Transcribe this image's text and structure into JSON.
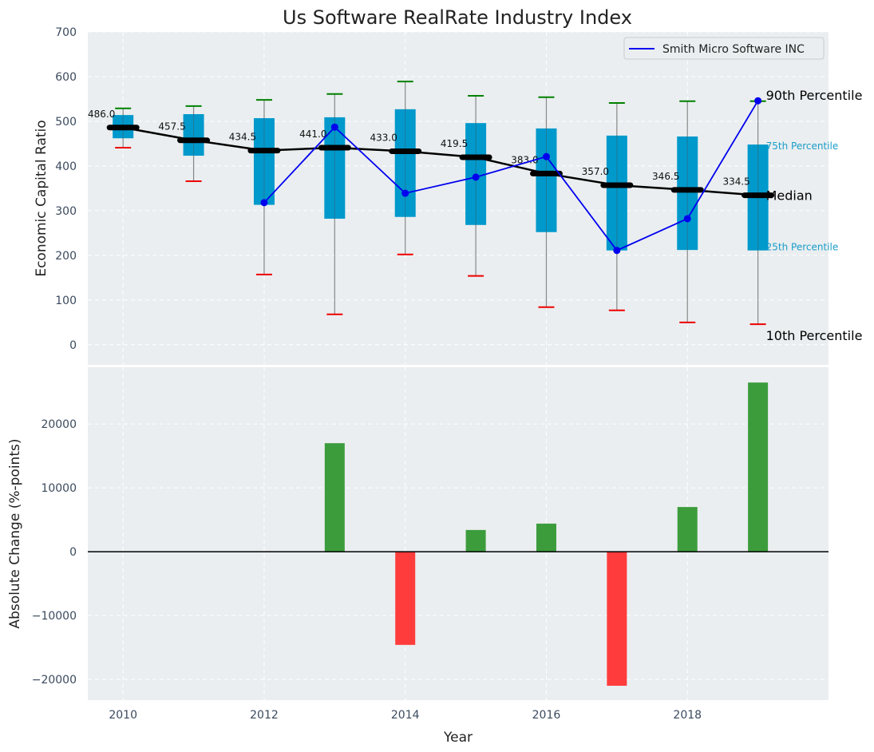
{
  "chart_data": [
    {
      "type": "box",
      "title": "Us Software RealRate Industry Index",
      "xlabel": "",
      "ylabel": "Economic Capital Ratio",
      "xlim": [
        2009.5,
        2020
      ],
      "ylim": [
        -45,
        700
      ],
      "yticks": [
        0,
        100,
        200,
        300,
        400,
        500,
        600,
        700
      ],
      "grid": true,
      "legend": {
        "position": "top-right",
        "entries": [
          "Smith Micro Software INC"
        ]
      },
      "years": [
        2010,
        2011,
        2012,
        2013,
        2014,
        2015,
        2016,
        2017,
        2018,
        2019
      ],
      "p90": [
        529,
        534,
        548,
        561,
        589,
        557,
        554,
        541,
        545,
        545
      ],
      "p75": [
        514,
        516,
        507,
        509,
        527,
        496,
        484,
        468,
        466,
        448
      ],
      "median": [
        486.0,
        457.5,
        434.5,
        441.0,
        433.0,
        419.5,
        383.0,
        357.0,
        346.5,
        334.5
      ],
      "median_labels": [
        "486.0",
        "457.5",
        "434.5",
        "441.0",
        "433.0",
        "419.5",
        "383.0",
        "357.0",
        "346.5",
        "334.5"
      ],
      "p25": [
        462,
        423,
        313,
        282,
        286,
        268,
        252,
        211,
        212,
        211
      ],
      "p10": [
        441,
        366,
        157,
        68,
        202,
        154,
        84,
        77,
        50,
        46
      ],
      "series": [
        {
          "name": "Smith Micro Software INC",
          "color": "#0000ee",
          "years": [
            2012,
            2013,
            2014,
            2015,
            2016,
            2017,
            2018,
            2019
          ],
          "values": [
            318,
            487,
            339,
            375,
            421,
            211,
            282,
            546
          ]
        }
      ],
      "annotations": {
        "p90": "90th Percentile",
        "p75": "75th Percentile",
        "median": "Median",
        "p25": "25th Percentile",
        "p10": "10th Percentile"
      },
      "colors": {
        "box": "#0099cc",
        "median": "#000000",
        "p90_cap": "#008000",
        "p10_cap": "#ee0000",
        "whisker": "#888888"
      }
    },
    {
      "type": "bar",
      "title": "",
      "xlabel": "Year",
      "ylabel": "Absolute Change (%-points)",
      "xlim": [
        2009.5,
        2020
      ],
      "ylim": [
        -23250,
        28900
      ],
      "xticks": [
        2010,
        2012,
        2014,
        2016,
        2018
      ],
      "xtick_labels": [
        "2010",
        "2012",
        "2014",
        "2016",
        "2018"
      ],
      "yticks": [
        -20000,
        -10000,
        0,
        10000,
        20000
      ],
      "ytick_labels": [
        "−20000",
        "−10000",
        "0",
        "10000",
        "20000"
      ],
      "grid": true,
      "categories": [
        2013,
        2014,
        2015,
        2016,
        2017,
        2018,
        2019
      ],
      "values": [
        17000,
        -14600,
        3400,
        4400,
        -21000,
        7000,
        26500
      ],
      "colors": {
        "positive": "#3c9c3c",
        "negative": "#ff3c3c"
      }
    }
  ]
}
